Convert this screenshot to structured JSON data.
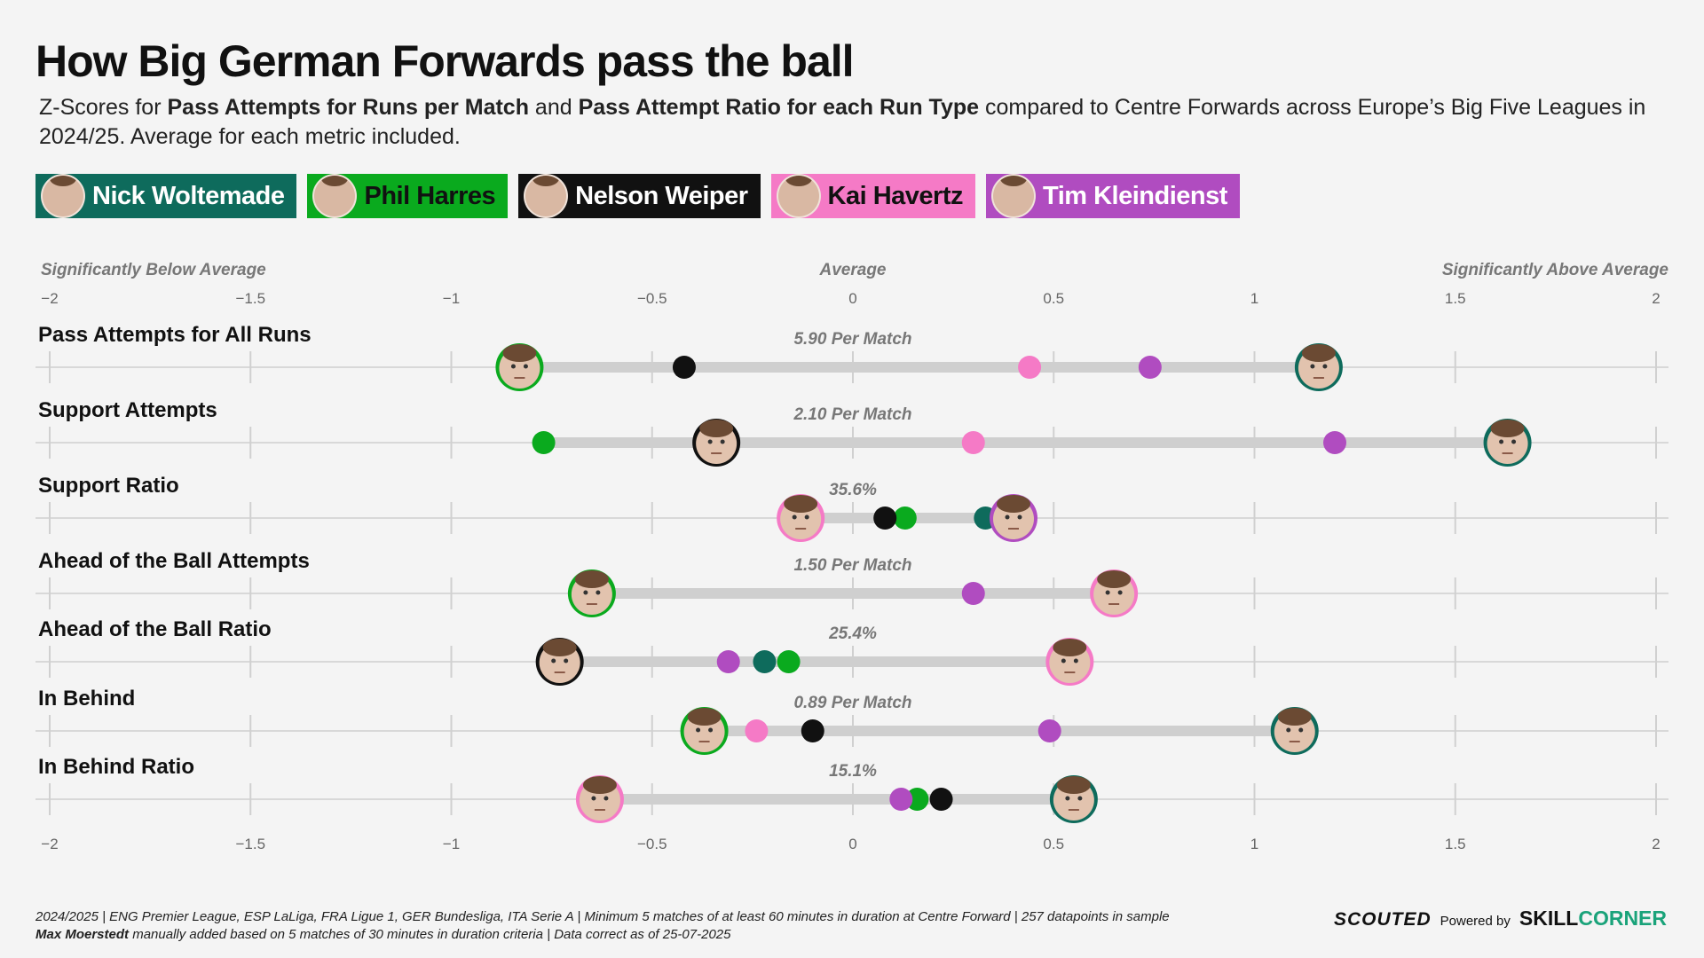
{
  "title": "How Big German Forwards pass the ball",
  "subtitle": {
    "p1": "Z-Scores for ",
    "b1": "Pass Attempts for Runs per Match",
    "p2": " and ",
    "b2": "Pass Attempt Ratio for each Run Type",
    "p3": " compared to Centre Forwards across Europe’s Big Five Leagues in 2024/25. Average for each metric included."
  },
  "players": [
    {
      "name": "Nick Woltemade",
      "color": "#0e6b5c",
      "text_color": "#ffffff"
    },
    {
      "name": "Phil Harres",
      "color": "#0aaa1e",
      "text_color": "#111111"
    },
    {
      "name": "Nelson Weiper",
      "color": "#111111",
      "text_color": "#ffffff"
    },
    {
      "name": "Kai Havertz",
      "color": "#f57ac6",
      "text_color": "#111111"
    },
    {
      "name": "Tim Kleindienst",
      "color": "#b04cc0",
      "text_color": "#ffffff"
    }
  ],
  "chart_data": {
    "type": "scatter",
    "xlim": [
      -2,
      2
    ],
    "x_ticks": [
      -2,
      -1.5,
      -1,
      -0.5,
      0,
      0.5,
      1,
      1.5,
      2
    ],
    "x_tick_labels": [
      "−2",
      "−1.5",
      "−1",
      "−0.5",
      "0",
      "0.5",
      "1",
      "1.5",
      "2"
    ],
    "scale_labels": {
      "left": "Significantly Below Average",
      "center": "Average",
      "right": "Significantly Above Average"
    },
    "series_order": [
      "Nick Woltemade",
      "Phil Harres",
      "Nelson Weiper",
      "Kai Havertz",
      "Tim Kleindienst"
    ],
    "metrics": [
      {
        "label": "Pass Attempts for All Runs",
        "average": "5.90 Per Match",
        "values": [
          1.16,
          -0.83,
          -0.42,
          0.44,
          0.74
        ],
        "highlight": [
          "Nick Woltemade",
          "Phil Harres"
        ]
      },
      {
        "label": "Support Attempts",
        "average": "2.10 Per Match",
        "values": [
          1.63,
          -0.77,
          -0.34,
          0.3,
          1.2
        ],
        "highlight": [
          "Nick Woltemade",
          "Nelson Weiper"
        ]
      },
      {
        "label": "Support Ratio",
        "average": "35.6%",
        "values": [
          0.33,
          0.13,
          0.08,
          -0.13,
          0.4
        ],
        "highlight": [
          "Kai Havertz",
          "Tim Kleindienst"
        ]
      },
      {
        "label": "Ahead of the Ball Attempts",
        "average": "1.50 Per Match",
        "values": [
          0.65,
          -0.65,
          0.65,
          0.65,
          0.3
        ],
        "highlight": [
          "Phil Harres",
          "Kai Havertz"
        ],
        "hidden": [
          "Nick Woltemade",
          "Nelson Weiper"
        ]
      },
      {
        "label": "Ahead of the Ball Ratio",
        "average": "25.4%",
        "values": [
          -0.22,
          -0.16,
          -0.73,
          0.54,
          -0.31
        ],
        "highlight": [
          "Nelson Weiper",
          "Kai Havertz"
        ]
      },
      {
        "label": "In Behind",
        "average": "0.89 Per Match",
        "values": [
          1.1,
          -0.37,
          -0.1,
          -0.24,
          0.49
        ],
        "highlight": [
          "Nick Woltemade",
          "Phil Harres"
        ]
      },
      {
        "label": "In Behind Ratio",
        "average": "15.1%",
        "values": [
          0.55,
          0.16,
          0.22,
          -0.63,
          0.12
        ],
        "highlight": [
          "Nick Woltemade",
          "Kai Havertz"
        ]
      }
    ]
  },
  "footer": {
    "line1": "2024/2025 | ENG Premier League, ESP LaLiga, FRA Ligue 1, GER Bundesliga, ITA Serie A | Minimum 5 matches of at least 60 minutes in duration at Centre Forward | 257 datapoints in sample",
    "line2_bold": "Max Moerstedt",
    "line2": " manually added based on 5 matches of 30 minutes in duration criteria | Data correct as of 25-07-2025"
  },
  "brand": {
    "scouted": "SCOUTED",
    "powered": "Powered by",
    "sc_a": "SKILL",
    "sc_b": "CORNER"
  }
}
